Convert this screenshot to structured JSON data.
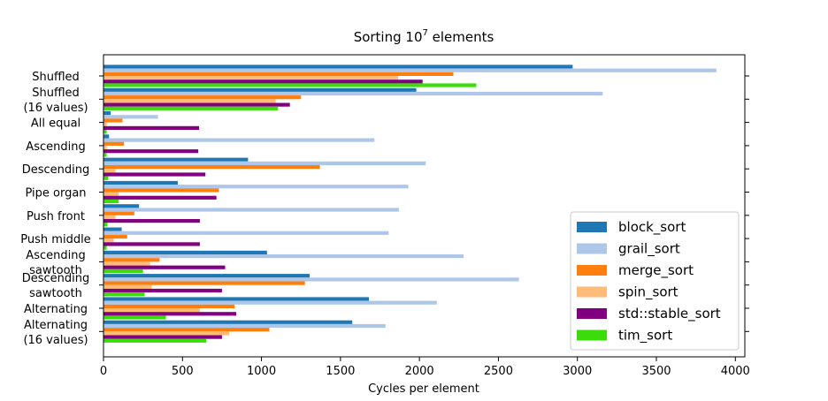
{
  "chart_data": {
    "type": "bar",
    "orientation": "horizontal",
    "title": "Sorting 10",
    "title_superscript": "7",
    "title_suffix": " elements",
    "xlabel": "Cycles per element",
    "ylabel": "",
    "xlim": [
      0,
      4060
    ],
    "xticks": [
      0,
      500,
      1000,
      1500,
      2000,
      2500,
      3000,
      3500,
      4000
    ],
    "grid": false,
    "legend_position": "lower-right",
    "categories": [
      [
        "Shuffled"
      ],
      [
        "Shuffled",
        "(16 values)"
      ],
      [
        "All equal"
      ],
      [
        "Ascending"
      ],
      [
        "Descending"
      ],
      [
        "Pipe organ"
      ],
      [
        "Push front"
      ],
      [
        "Push middle"
      ],
      [
        "Ascending",
        "sawtooth"
      ],
      [
        "Descending",
        "sawtooth"
      ],
      [
        "Alternating"
      ],
      [
        "Alternating",
        "(16 values)"
      ]
    ],
    "series": [
      {
        "name": "block_sort",
        "color": "#1f77b4",
        "values": [
          2970,
          1980,
          45,
          35,
          915,
          470,
          225,
          115,
          1035,
          1305,
          1680,
          1575
        ]
      },
      {
        "name": "grail_sort",
        "color": "#aec7e8",
        "values": [
          3880,
          3160,
          345,
          1715,
          2040,
          1930,
          1870,
          1805,
          2280,
          2630,
          2110,
          1785
        ]
      },
      {
        "name": "merge_sort",
        "color": "#ff7f0e",
        "values": [
          2215,
          1250,
          120,
          130,
          1370,
          730,
          195,
          150,
          355,
          1275,
          830,
          1050
        ]
      },
      {
        "name": "spin_sort",
        "color": "#ffbb78",
        "values": [
          1865,
          1090,
          20,
          20,
          75,
          95,
          75,
          65,
          295,
          305,
          610,
          795
        ]
      },
      {
        "name": "std::stable_sort",
        "color": "#800080",
        "values": [
          2020,
          1180,
          605,
          600,
          645,
          715,
          610,
          610,
          770,
          750,
          840,
          750
        ]
      },
      {
        "name": "tim_sort",
        "color": "#3cdc0a",
        "values": [
          2360,
          1105,
          20,
          20,
          30,
          95,
          25,
          20,
          250,
          260,
          395,
          650
        ]
      }
    ]
  }
}
